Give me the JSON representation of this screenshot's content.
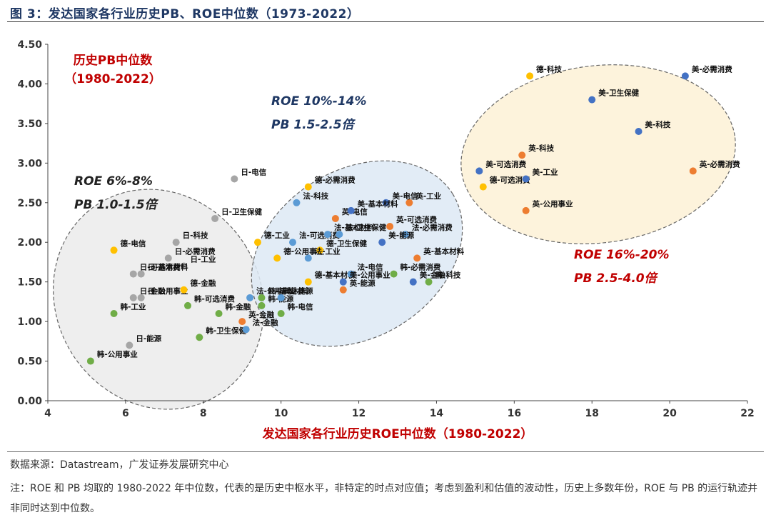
{
  "figure_title": "图 3：发达国家各行业历史PB、ROE中位数（1973-2022）",
  "source": "数据来源：Datastream，广发证券发展研究中心",
  "note": "注：ROE 和 PB 均取的 1980-2022 年中位数，代表的是历史中枢水平，非特定的时点对应值；考虑到盈利和估值的波动性，历史上多数年份，ROE 与 PB 的运行轨迹并非同时达到中位数。",
  "colors": {
    "japan": "#a6a6a6",
    "korea": "#70ad47",
    "germany": "#ffc000",
    "france": "#5b9bd5",
    "uk": "#ed7d31",
    "us": "#4472c4",
    "annotation_red": "#c00000",
    "annotation_blue": "#1f3864",
    "annotation_dark": "#222222"
  },
  "chart_data": {
    "type": "scatter",
    "title": "历史PB中位数（1980-2022）",
    "xlabel": "发达国家各行业历史ROE中位数（1980-2022）",
    "ylabel": "",
    "xlim": [
      4,
      22
    ],
    "ylim": [
      0,
      4.5
    ],
    "x_ticks": [
      "4",
      "6",
      "8",
      "10",
      "12",
      "14",
      "16",
      "18",
      "20",
      "22"
    ],
    "y_ticks": [
      "0.00",
      "0.50",
      "1.00",
      "1.50",
      "2.00",
      "2.50",
      "3.00",
      "3.50",
      "4.00",
      "4.50"
    ],
    "grid": false,
    "points": [
      {
        "label": "日-电信",
        "x": 8.8,
        "y": 2.8,
        "group": "japan"
      },
      {
        "label": "日-卫生保健",
        "x": 8.3,
        "y": 2.3,
        "group": "japan"
      },
      {
        "label": "日-科技",
        "x": 7.3,
        "y": 2.0,
        "group": "japan"
      },
      {
        "label": "日-必需消费",
        "x": 7.1,
        "y": 1.8,
        "group": "japan"
      },
      {
        "label": "日-工业",
        "x": 7.5,
        "y": 1.7,
        "group": "japan"
      },
      {
        "label": "日-可选消费",
        "x": 6.2,
        "y": 1.6,
        "group": "japan"
      },
      {
        "label": "日-基本材料",
        "x": 6.4,
        "y": 1.6,
        "group": "japan"
      },
      {
        "label": "日-金融",
        "x": 6.2,
        "y": 1.3,
        "group": "japan"
      },
      {
        "label": "日-公用事业",
        "x": 6.4,
        "y": 1.3,
        "group": "japan"
      },
      {
        "label": "日-能源",
        "x": 6.1,
        "y": 0.7,
        "group": "japan"
      },
      {
        "label": "韩-工业",
        "x": 5.7,
        "y": 1.1,
        "group": "korea"
      },
      {
        "label": "韩-公用事业",
        "x": 5.1,
        "y": 0.5,
        "group": "korea"
      },
      {
        "label": "韩-可选消费",
        "x": 7.6,
        "y": 1.2,
        "group": "korea"
      },
      {
        "label": "韩-金融",
        "x": 8.4,
        "y": 1.1,
        "group": "korea"
      },
      {
        "label": "韩-卫生保健",
        "x": 7.9,
        "y": 0.8,
        "group": "korea"
      },
      {
        "label": "韩-基本材料",
        "x": 9.5,
        "y": 1.3,
        "group": "korea"
      },
      {
        "label": "韩-能源",
        "x": 9.5,
        "y": 1.2,
        "group": "korea"
      },
      {
        "label": "韩-电信",
        "x": 10.0,
        "y": 1.1,
        "group": "korea"
      },
      {
        "label": "韩-必需消费",
        "x": 12.9,
        "y": 1.6,
        "group": "korea"
      },
      {
        "label": "韩-科技",
        "x": 13.8,
        "y": 1.5,
        "group": "korea"
      },
      {
        "label": "德-电信",
        "x": 5.7,
        "y": 1.9,
        "group": "germany"
      },
      {
        "label": "德-金融",
        "x": 7.5,
        "y": 1.4,
        "group": "germany"
      },
      {
        "label": "德-必需消费",
        "x": 10.7,
        "y": 2.7,
        "group": "germany"
      },
      {
        "label": "德-工业",
        "x": 9.4,
        "y": 2.0,
        "group": "germany"
      },
      {
        "label": "德-公用事业",
        "x": 9.9,
        "y": 1.8,
        "group": "germany"
      },
      {
        "label": "德-卫生保健",
        "x": 11.0,
        "y": 1.9,
        "group": "germany"
      },
      {
        "label": "德-基本材料",
        "x": 10.7,
        "y": 1.5,
        "group": "germany"
      },
      {
        "label": "德-科技",
        "x": 16.4,
        "y": 4.1,
        "group": "germany"
      },
      {
        "label": "德-可选消费",
        "x": 15.2,
        "y": 2.7,
        "group": "germany"
      },
      {
        "label": "法-科技",
        "x": 10.4,
        "y": 2.5,
        "group": "france"
      },
      {
        "label": "法-可选消费",
        "x": 10.3,
        "y": 2.0,
        "group": "france"
      },
      {
        "label": "法-卫生保健",
        "x": 11.5,
        "y": 2.1,
        "group": "france"
      },
      {
        "label": "法-基本材料",
        "x": 11.2,
        "y": 2.1,
        "group": "france"
      },
      {
        "label": "法-工业",
        "x": 10.7,
        "y": 1.8,
        "group": "france"
      },
      {
        "label": "法-必需消费",
        "x": 13.2,
        "y": 2.1,
        "group": "france"
      },
      {
        "label": "法-电信",
        "x": 11.8,
        "y": 1.6,
        "group": "france"
      },
      {
        "label": "法-公用事业",
        "x": 9.2,
        "y": 1.3,
        "group": "france"
      },
      {
        "label": "法-能源",
        "x": 10.0,
        "y": 1.3,
        "group": "france"
      },
      {
        "label": "法-金融",
        "x": 9.1,
        "y": 0.9,
        "group": "france"
      },
      {
        "label": "英-电信",
        "x": 11.4,
        "y": 2.3,
        "group": "uk"
      },
      {
        "label": "英-工业",
        "x": 13.3,
        "y": 2.5,
        "group": "uk"
      },
      {
        "label": "英-可选消费",
        "x": 12.8,
        "y": 2.2,
        "group": "uk"
      },
      {
        "label": "英-基本材料",
        "x": 13.5,
        "y": 1.8,
        "group": "uk"
      },
      {
        "label": "英-能源",
        "x": 11.6,
        "y": 1.4,
        "group": "uk"
      },
      {
        "label": "英-金融",
        "x": 9.0,
        "y": 1.0,
        "group": "uk"
      },
      {
        "label": "英-科技",
        "x": 16.2,
        "y": 3.1,
        "group": "uk"
      },
      {
        "label": "英-公用事业",
        "x": 16.3,
        "y": 2.4,
        "group": "uk"
      },
      {
        "label": "英-必需消费",
        "x": 20.6,
        "y": 2.9,
        "group": "uk"
      },
      {
        "label": "美-电信",
        "x": 12.7,
        "y": 2.5,
        "group": "us"
      },
      {
        "label": "美-基本材料",
        "x": 11.8,
        "y": 2.4,
        "group": "us"
      },
      {
        "label": "美-能源",
        "x": 12.6,
        "y": 2.0,
        "group": "us"
      },
      {
        "label": "美-公用事业",
        "x": 11.6,
        "y": 1.5,
        "group": "us"
      },
      {
        "label": "美-金融",
        "x": 13.4,
        "y": 1.5,
        "group": "us"
      },
      {
        "label": "美-必需消费",
        "x": 20.4,
        "y": 4.1,
        "group": "us"
      },
      {
        "label": "美-卫生保健",
        "x": 18.0,
        "y": 3.8,
        "group": "us"
      },
      {
        "label": "美-科技",
        "x": 19.2,
        "y": 3.4,
        "group": "us"
      },
      {
        "label": "美-可选消费",
        "x": 15.1,
        "y": 2.9,
        "group": "us"
      },
      {
        "label": "美-工业",
        "x": 16.3,
        "y": 2.8,
        "group": "us"
      }
    ],
    "annotations": [
      {
        "lines": [
          "ROE  6%-8%",
          "PB  1.0-1.5倍"
        ],
        "style": "dark"
      },
      {
        "lines": [
          "ROE  10%-14%",
          "PB  1.5-2.5倍"
        ],
        "style": "blue"
      },
      {
        "lines": [
          "ROE  16%-20%",
          "PB  2.5-4.0倍"
        ],
        "style": "red"
      }
    ]
  }
}
